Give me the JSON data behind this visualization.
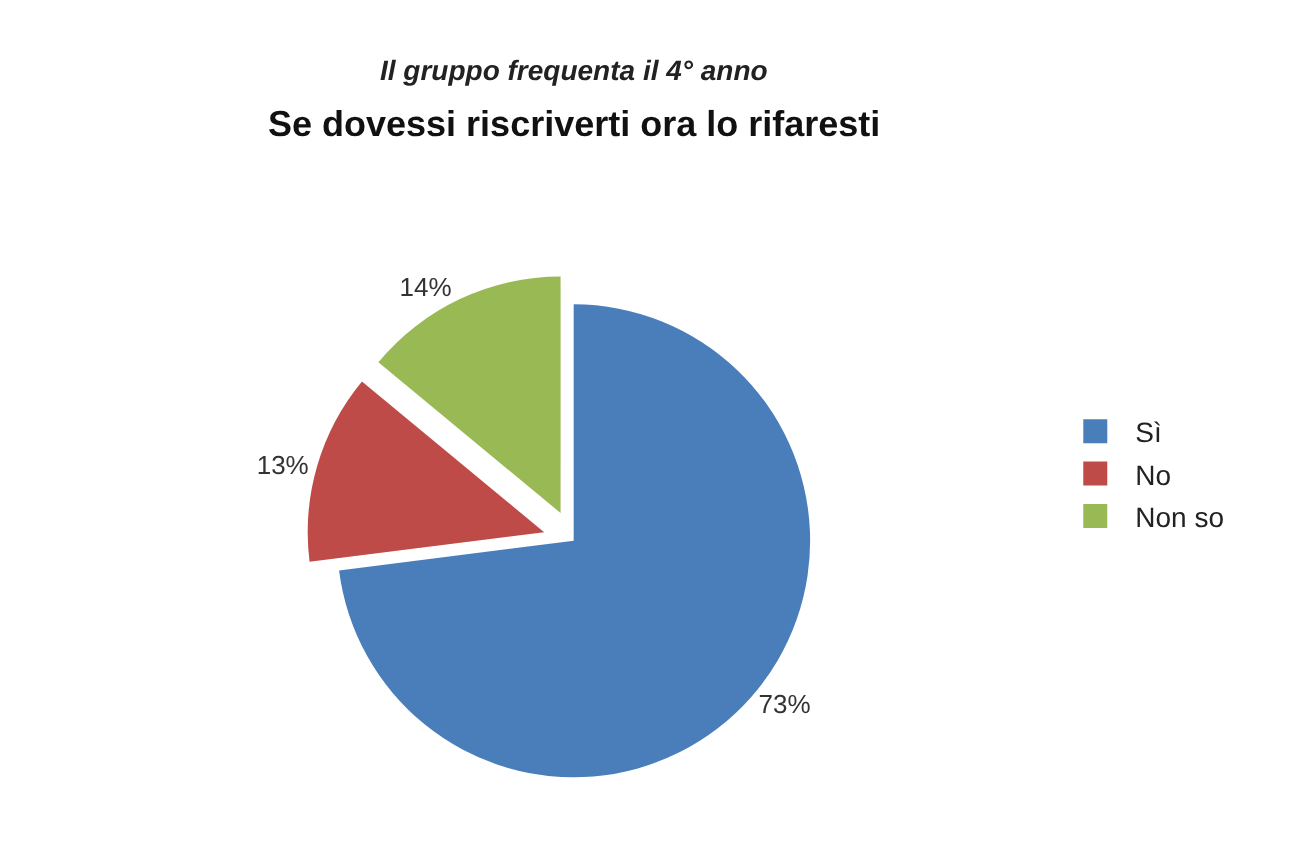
{
  "chart_data": {
    "type": "pie",
    "title": "Il gruppo frequenta il 4° anno",
    "subtitle": "Se dovessi riscriverti ora lo rifaresti",
    "categories": [
      "Sì",
      "No",
      "Non so"
    ],
    "values": [
      73,
      13,
      14
    ],
    "colors": [
      "#4a7ebb",
      "#be4b48",
      "#98b954"
    ],
    "value_labels": [
      "73%",
      "13%",
      "14%"
    ],
    "legend": "right"
  }
}
